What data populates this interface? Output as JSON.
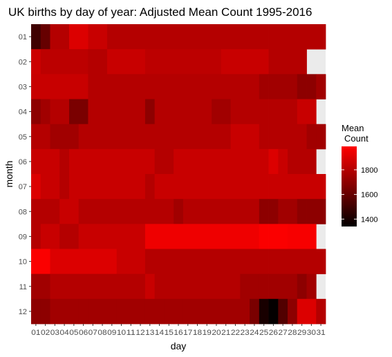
{
  "chart_data": {
    "type": "heatmap",
    "title": "UK births by day of year: Adjusted Mean Count 1995-2016",
    "xlabel": "day",
    "ylabel": "month",
    "x_categories": [
      "01",
      "02",
      "03",
      "04",
      "05",
      "06",
      "07",
      "08",
      "09",
      "10",
      "11",
      "12",
      "13",
      "14",
      "15",
      "16",
      "17",
      "18",
      "19",
      "20",
      "21",
      "22",
      "23",
      "24",
      "25",
      "26",
      "27",
      "28",
      "29",
      "30",
      "31"
    ],
    "y_categories": [
      "01",
      "02",
      "03",
      "04",
      "05",
      "06",
      "07",
      "08",
      "09",
      "10",
      "11",
      "12"
    ],
    "legend": {
      "title_line1": "Mean",
      "title_line2": "Count",
      "ticks": [
        1400,
        1600,
        1800
      ],
      "min": 1340,
      "max": 1990,
      "low_color": "#000000",
      "high_color": "#ff0000",
      "position": "right"
    },
    "missing_color": "#ebebeb",
    "values": [
      [
        1500,
        1600,
        1800,
        1800,
        1900,
        1900,
        1850,
        1850,
        1800,
        1800,
        1800,
        1800,
        1800,
        1800,
        1800,
        1800,
        1800,
        1800,
        1800,
        1800,
        1800,
        1800,
        1800,
        1800,
        1800,
        1800,
        1800,
        1800,
        1800,
        1800,
        1800
      ],
      [
        1860,
        1820,
        1820,
        1820,
        1820,
        1820,
        1800,
        1800,
        1850,
        1850,
        1850,
        1850,
        1820,
        1820,
        1820,
        1820,
        1820,
        1820,
        1820,
        1820,
        1850,
        1850,
        1850,
        1850,
        1850,
        1800,
        1800,
        1800,
        1800,
        null,
        null
      ],
      [
        1850,
        1850,
        1850,
        1850,
        1850,
        1850,
        1800,
        1800,
        1800,
        1800,
        1800,
        1800,
        1800,
        1800,
        1800,
        1800,
        1800,
        1800,
        1800,
        1800,
        1800,
        1800,
        1800,
        1800,
        1750,
        1750,
        1750,
        1750,
        1700,
        1700,
        1750
      ],
      [
        1700,
        1750,
        1800,
        1800,
        1650,
        1650,
        1800,
        1800,
        1800,
        1800,
        1800,
        1800,
        1700,
        1800,
        1800,
        1800,
        1800,
        1800,
        1800,
        1750,
        1750,
        1800,
        1800,
        1800,
        1800,
        1800,
        1800,
        1800,
        1850,
        1850,
        null
      ],
      [
        1800,
        1800,
        1750,
        1750,
        1750,
        1800,
        1800,
        1800,
        1800,
        1800,
        1800,
        1800,
        1800,
        1800,
        1800,
        1800,
        1800,
        1800,
        1800,
        1800,
        1800,
        1850,
        1850,
        1850,
        1800,
        1800,
        1800,
        1800,
        1800,
        1750,
        1750
      ],
      [
        1850,
        1850,
        1850,
        1800,
        1850,
        1850,
        1850,
        1850,
        1850,
        1850,
        1850,
        1850,
        1850,
        1800,
        1800,
        1850,
        1850,
        1850,
        1850,
        1850,
        1850,
        1850,
        1850,
        1850,
        1850,
        1900,
        1850,
        1800,
        1800,
        1800,
        null
      ],
      [
        1900,
        1850,
        1850,
        1800,
        1850,
        1850,
        1850,
        1850,
        1850,
        1850,
        1850,
        1850,
        1800,
        1850,
        1850,
        1850,
        1850,
        1850,
        1850,
        1850,
        1850,
        1850,
        1850,
        1850,
        1850,
        1850,
        1850,
        1850,
        1850,
        1850,
        1850
      ],
      [
        1800,
        1800,
        1800,
        1850,
        1850,
        1800,
        1800,
        1800,
        1800,
        1800,
        1800,
        1800,
        1800,
        1800,
        1800,
        1750,
        1800,
        1800,
        1800,
        1800,
        1800,
        1800,
        1800,
        1800,
        1700,
        1700,
        1750,
        1750,
        1700,
        1700,
        1700
      ],
      [
        1800,
        1850,
        1850,
        1800,
        1800,
        1850,
        1850,
        1850,
        1850,
        1850,
        1850,
        1850,
        1950,
        1950,
        1950,
        1950,
        1950,
        1950,
        1950,
        1950,
        1950,
        1950,
        1950,
        1950,
        1980,
        1980,
        1980,
        1970,
        1970,
        1970,
        null
      ],
      [
        1980,
        1980,
        1900,
        1900,
        1900,
        1900,
        1900,
        1900,
        1900,
        1850,
        1850,
        1850,
        1800,
        1800,
        1800,
        1800,
        1800,
        1800,
        1800,
        1800,
        1800,
        1800,
        1800,
        1800,
        1800,
        1800,
        1800,
        1800,
        1800,
        1800,
        1800
      ],
      [
        1750,
        1750,
        1800,
        1800,
        1800,
        1800,
        1800,
        1800,
        1800,
        1800,
        1800,
        1800,
        1850,
        1800,
        1800,
        1800,
        1800,
        1800,
        1800,
        1800,
        1800,
        1800,
        1750,
        1750,
        1750,
        1750,
        1750,
        1750,
        1700,
        1750,
        null
      ],
      [
        1700,
        1700,
        1750,
        1750,
        1750,
        1750,
        1750,
        1750,
        1750,
        1750,
        1750,
        1750,
        1750,
        1750,
        1750,
        1750,
        1750,
        1750,
        1750,
        1750,
        1750,
        1750,
        1750,
        1650,
        1400,
        1350,
        1550,
        1700,
        1900,
        1900,
        1800
      ]
    ]
  }
}
